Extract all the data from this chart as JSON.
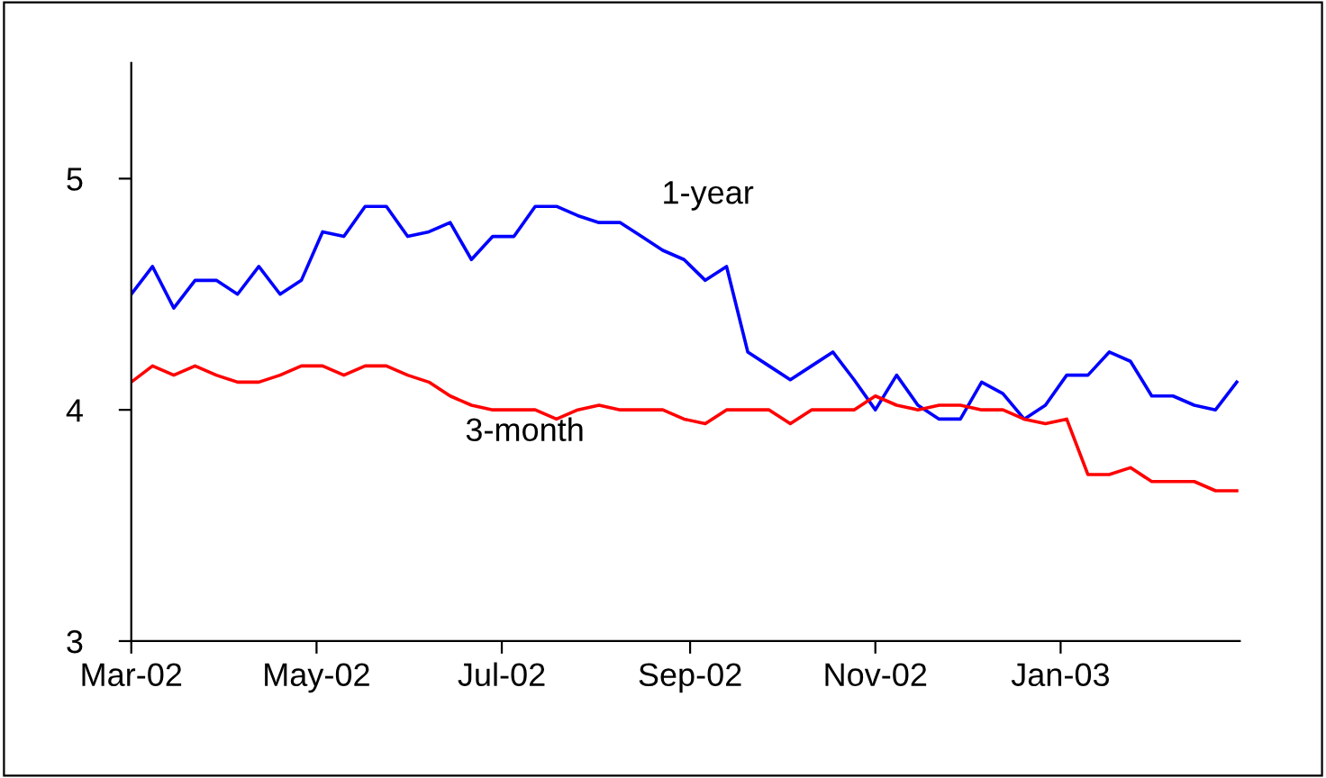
{
  "chart_data": {
    "type": "line",
    "x": [
      "2002-03-01",
      "2002-03-08",
      "2002-03-15",
      "2002-03-22",
      "2002-03-29",
      "2002-04-05",
      "2002-04-12",
      "2002-04-19",
      "2002-04-26",
      "2002-05-03",
      "2002-05-10",
      "2002-05-17",
      "2002-05-24",
      "2002-05-31",
      "2002-06-07",
      "2002-06-14",
      "2002-06-21",
      "2002-06-28",
      "2002-07-05",
      "2002-07-12",
      "2002-07-19",
      "2002-07-26",
      "2002-08-02",
      "2002-08-09",
      "2002-08-16",
      "2002-08-23",
      "2002-08-30",
      "2002-09-06",
      "2002-09-13",
      "2002-09-20",
      "2002-09-27",
      "2002-10-04",
      "2002-10-11",
      "2002-10-18",
      "2002-10-25",
      "2002-11-01",
      "2002-11-08",
      "2002-11-15",
      "2002-11-22",
      "2002-11-29",
      "2002-12-06",
      "2002-12-13",
      "2002-12-20",
      "2002-12-27",
      "2003-01-03",
      "2003-01-10",
      "2003-01-17",
      "2003-01-24",
      "2003-01-31",
      "2003-02-07",
      "2003-02-14",
      "2003-02-21",
      "2003-02-28"
    ],
    "series": [
      {
        "name": "1-year",
        "color": "#0000ff",
        "values": [
          4.5,
          4.62,
          4.44,
          4.56,
          4.56,
          4.5,
          4.62,
          4.5,
          4.56,
          4.77,
          4.75,
          4.88,
          4.88,
          4.75,
          4.77,
          4.81,
          4.65,
          4.75,
          4.75,
          4.88,
          4.88,
          4.84,
          4.81,
          4.81,
          4.75,
          4.69,
          4.65,
          4.56,
          4.62,
          4.25,
          4.19,
          4.13,
          4.19,
          4.25,
          4.13,
          4.0,
          4.15,
          4.02,
          3.96,
          3.96,
          4.12,
          4.07,
          3.96,
          4.02,
          4.15,
          4.15,
          4.25,
          4.21,
          4.06,
          4.06,
          4.02,
          4.0,
          4.12
        ]
      },
      {
        "name": "3-month",
        "color": "#ff0000",
        "values": [
          4.12,
          4.19,
          4.15,
          4.19,
          4.15,
          4.12,
          4.12,
          4.15,
          4.19,
          4.19,
          4.15,
          4.19,
          4.19,
          4.15,
          4.12,
          4.06,
          4.02,
          4.0,
          4.0,
          4.0,
          3.96,
          4.0,
          4.02,
          4.0,
          4.0,
          4.0,
          3.96,
          3.94,
          4.0,
          4.0,
          4.0,
          3.94,
          4.0,
          4.0,
          4.0,
          4.06,
          4.02,
          4.0,
          4.02,
          4.02,
          4.0,
          4.0,
          3.96,
          3.94,
          3.96,
          3.72,
          3.72,
          3.75,
          3.69,
          3.69,
          3.69,
          3.65,
          3.65
        ]
      }
    ],
    "xlim": [
      "2002-03-01",
      "2003-03-01"
    ],
    "xticks": [
      {
        "value": "2002-03-01",
        "label": "Mar-02"
      },
      {
        "value": "2002-05-01",
        "label": "May-02"
      },
      {
        "value": "2002-07-01",
        "label": "Jul-02"
      },
      {
        "value": "2002-09-01",
        "label": "Sep-02"
      },
      {
        "value": "2002-11-01",
        "label": "Nov-02"
      },
      {
        "value": "2003-01-01",
        "label": "Jan-03"
      }
    ],
    "ylim": [
      3,
      5.5
    ],
    "yticks": [
      3,
      4,
      5
    ],
    "grid": false,
    "legend": false,
    "marker": "none",
    "line_style": "solid"
  }
}
